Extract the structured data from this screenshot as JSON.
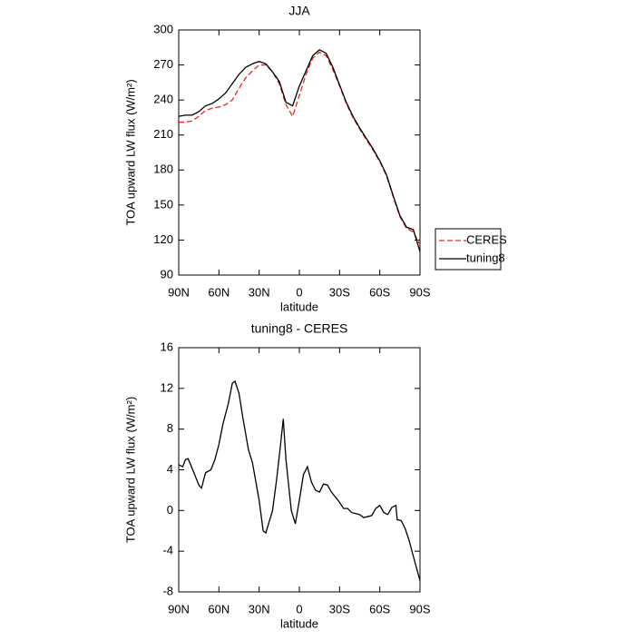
{
  "chart_data": [
    {
      "type": "line",
      "title": "JJA",
      "x_label": "latitude",
      "y_label": "TOA upward LW flux (W/m²)",
      "x": [
        90,
        85,
        80,
        75,
        70,
        65,
        60,
        55,
        50,
        45,
        40,
        35,
        30,
        25,
        20,
        15,
        10,
        5,
        0,
        -5,
        -10,
        -15,
        -20,
        -25,
        -30,
        -35,
        -40,
        -45,
        -50,
        -55,
        -60,
        -65,
        -70,
        -75,
        -80,
        -85,
        -90
      ],
      "series": [
        {
          "name": "CERES",
          "color": "#e8251f",
          "linestyle": "dashed",
          "values": [
            221,
            221,
            222,
            226,
            231,
            233,
            234,
            236,
            240,
            250,
            259,
            265,
            270,
            270,
            264,
            254,
            236,
            226,
            244,
            262,
            276,
            281,
            278,
            266,
            252,
            237,
            225,
            215,
            206,
            197,
            187,
            175,
            157,
            140,
            130,
            127,
            116
          ]
        },
        {
          "name": "tuning8",
          "color": "#000000",
          "linestyle": "solid",
          "values": [
            226,
            227,
            227,
            230,
            235,
            237,
            241,
            246,
            254,
            262,
            268,
            271,
            273,
            271,
            264,
            256,
            238,
            235,
            252,
            265,
            278,
            283,
            280,
            268,
            253,
            238,
            226,
            216,
            207,
            198,
            188,
            176,
            158,
            141,
            131,
            129,
            110
          ]
        }
      ],
      "xlim": [
        90,
        -90
      ],
      "xticks": [
        {
          "value": 90,
          "label": "90N"
        },
        {
          "value": 60,
          "label": "60N"
        },
        {
          "value": 30,
          "label": "30N"
        },
        0,
        {
          "value": -30,
          "label": "30S"
        },
        {
          "value": -60,
          "label": "60S"
        },
        {
          "value": -90,
          "label": "90S"
        }
      ],
      "ylim": [
        90,
        300
      ],
      "yticks": [
        90,
        120,
        150,
        180,
        210,
        240,
        270,
        300
      ],
      "legend": "right"
    },
    {
      "type": "line",
      "title": "tuning8 - CERES",
      "x_label": "latitude",
      "y_label": "TOA upward LW flux (W/m²)",
      "x": [
        90,
        87,
        85,
        83,
        78,
        75,
        73,
        70,
        66,
        63,
        60,
        57,
        53,
        50,
        48,
        45,
        42,
        38,
        35,
        30,
        27,
        25,
        20,
        17,
        14,
        12,
        10,
        6,
        3,
        0,
        -3,
        -6,
        -9,
        -12,
        -15,
        -18,
        -21,
        -24,
        -30,
        -33,
        -36,
        -39,
        -45,
        -48,
        -51,
        -54,
        -57,
        -60,
        -63,
        -66,
        -69,
        -72,
        -73,
        -76,
        -79,
        -82,
        -85,
        -90
      ],
      "series": [
        {
          "name": "tuning8 - CERES",
          "color": "#000000",
          "linestyle": "solid",
          "values": [
            4.5,
            4.3,
            5.0,
            5.1,
            3.5,
            2.5,
            2.2,
            3.7,
            4.0,
            5.0,
            6.5,
            8.5,
            10.5,
            12.5,
            12.7,
            11.5,
            9,
            6,
            4.7,
            1,
            -2,
            -2.2,
            0,
            3,
            6.5,
            9,
            5,
            0,
            -1.3,
            1,
            3.5,
            4.3,
            2.8,
            2,
            1.8,
            2.6,
            2.5,
            1.8,
            0.8,
            0.2,
            0.2,
            -0.2,
            -0.4,
            -0.7,
            -0.6,
            -0.5,
            0.2,
            0.5,
            -0.2,
            -0.4,
            0.3,
            0.5,
            -0.9,
            -1,
            -1.8,
            -3,
            -4.5,
            -6.9
          ]
        }
      ],
      "xlim": [
        90,
        -90
      ],
      "xticks": [
        {
          "value": 90,
          "label": "90N"
        },
        {
          "value": 60,
          "label": "60N"
        },
        {
          "value": 30,
          "label": "30N"
        },
        0,
        {
          "value": -30,
          "label": "30S"
        },
        {
          "value": -60,
          "label": "60S"
        },
        {
          "value": -90,
          "label": "90S"
        }
      ],
      "ylim": [
        -8,
        16
      ],
      "yticks": [
        -8,
        -4,
        0,
        4,
        8,
        12,
        16
      ]
    }
  ]
}
